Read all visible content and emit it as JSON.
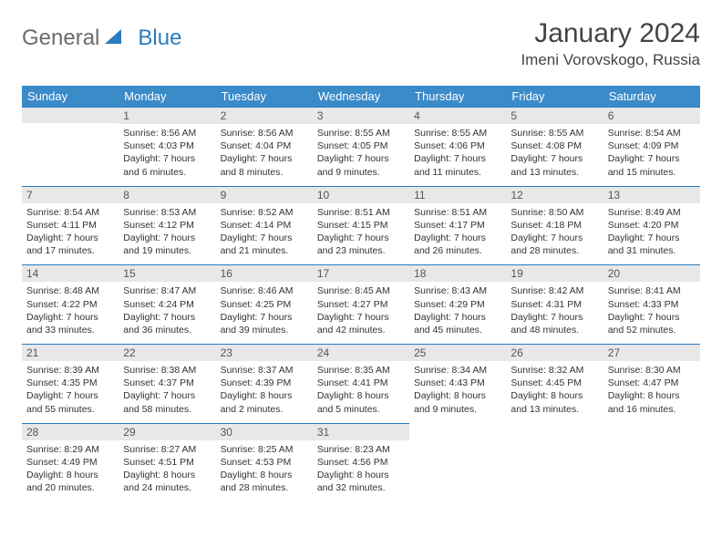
{
  "brand": {
    "part1": "General",
    "part2": "Blue"
  },
  "title": "January 2024",
  "location": "Imeni Vorovskogo, Russia",
  "colors": {
    "header_bg": "#3b8bc9",
    "header_text": "#ffffff",
    "daynum_bg": "#e8e8e8",
    "border": "#2b7bbf",
    "logo_gray": "#6b6b6b",
    "logo_blue": "#2b7bbf"
  },
  "weekdays": [
    "Sunday",
    "Monday",
    "Tuesday",
    "Wednesday",
    "Thursday",
    "Friday",
    "Saturday"
  ],
  "start_offset": 1,
  "days": [
    {
      "n": 1,
      "sr": "8:56 AM",
      "ss": "4:03 PM",
      "dl": "7 hours and 6 minutes."
    },
    {
      "n": 2,
      "sr": "8:56 AM",
      "ss": "4:04 PM",
      "dl": "7 hours and 8 minutes."
    },
    {
      "n": 3,
      "sr": "8:55 AM",
      "ss": "4:05 PM",
      "dl": "7 hours and 9 minutes."
    },
    {
      "n": 4,
      "sr": "8:55 AM",
      "ss": "4:06 PM",
      "dl": "7 hours and 11 minutes."
    },
    {
      "n": 5,
      "sr": "8:55 AM",
      "ss": "4:08 PM",
      "dl": "7 hours and 13 minutes."
    },
    {
      "n": 6,
      "sr": "8:54 AM",
      "ss": "4:09 PM",
      "dl": "7 hours and 15 minutes."
    },
    {
      "n": 7,
      "sr": "8:54 AM",
      "ss": "4:11 PM",
      "dl": "7 hours and 17 minutes."
    },
    {
      "n": 8,
      "sr": "8:53 AM",
      "ss": "4:12 PM",
      "dl": "7 hours and 19 minutes."
    },
    {
      "n": 9,
      "sr": "8:52 AM",
      "ss": "4:14 PM",
      "dl": "7 hours and 21 minutes."
    },
    {
      "n": 10,
      "sr": "8:51 AM",
      "ss": "4:15 PM",
      "dl": "7 hours and 23 minutes."
    },
    {
      "n": 11,
      "sr": "8:51 AM",
      "ss": "4:17 PM",
      "dl": "7 hours and 26 minutes."
    },
    {
      "n": 12,
      "sr": "8:50 AM",
      "ss": "4:18 PM",
      "dl": "7 hours and 28 minutes."
    },
    {
      "n": 13,
      "sr": "8:49 AM",
      "ss": "4:20 PM",
      "dl": "7 hours and 31 minutes."
    },
    {
      "n": 14,
      "sr": "8:48 AM",
      "ss": "4:22 PM",
      "dl": "7 hours and 33 minutes."
    },
    {
      "n": 15,
      "sr": "8:47 AM",
      "ss": "4:24 PM",
      "dl": "7 hours and 36 minutes."
    },
    {
      "n": 16,
      "sr": "8:46 AM",
      "ss": "4:25 PM",
      "dl": "7 hours and 39 minutes."
    },
    {
      "n": 17,
      "sr": "8:45 AM",
      "ss": "4:27 PM",
      "dl": "7 hours and 42 minutes."
    },
    {
      "n": 18,
      "sr": "8:43 AM",
      "ss": "4:29 PM",
      "dl": "7 hours and 45 minutes."
    },
    {
      "n": 19,
      "sr": "8:42 AM",
      "ss": "4:31 PM",
      "dl": "7 hours and 48 minutes."
    },
    {
      "n": 20,
      "sr": "8:41 AM",
      "ss": "4:33 PM",
      "dl": "7 hours and 52 minutes."
    },
    {
      "n": 21,
      "sr": "8:39 AM",
      "ss": "4:35 PM",
      "dl": "7 hours and 55 minutes."
    },
    {
      "n": 22,
      "sr": "8:38 AM",
      "ss": "4:37 PM",
      "dl": "7 hours and 58 minutes."
    },
    {
      "n": 23,
      "sr": "8:37 AM",
      "ss": "4:39 PM",
      "dl": "8 hours and 2 minutes."
    },
    {
      "n": 24,
      "sr": "8:35 AM",
      "ss": "4:41 PM",
      "dl": "8 hours and 5 minutes."
    },
    {
      "n": 25,
      "sr": "8:34 AM",
      "ss": "4:43 PM",
      "dl": "8 hours and 9 minutes."
    },
    {
      "n": 26,
      "sr": "8:32 AM",
      "ss": "4:45 PM",
      "dl": "8 hours and 13 minutes."
    },
    {
      "n": 27,
      "sr": "8:30 AM",
      "ss": "4:47 PM",
      "dl": "8 hours and 16 minutes."
    },
    {
      "n": 28,
      "sr": "8:29 AM",
      "ss": "4:49 PM",
      "dl": "8 hours and 20 minutes."
    },
    {
      "n": 29,
      "sr": "8:27 AM",
      "ss": "4:51 PM",
      "dl": "8 hours and 24 minutes."
    },
    {
      "n": 30,
      "sr": "8:25 AM",
      "ss": "4:53 PM",
      "dl": "8 hours and 28 minutes."
    },
    {
      "n": 31,
      "sr": "8:23 AM",
      "ss": "4:56 PM",
      "dl": "8 hours and 32 minutes."
    }
  ],
  "labels": {
    "sunrise": "Sunrise:",
    "sunset": "Sunset:",
    "daylight": "Daylight:"
  }
}
